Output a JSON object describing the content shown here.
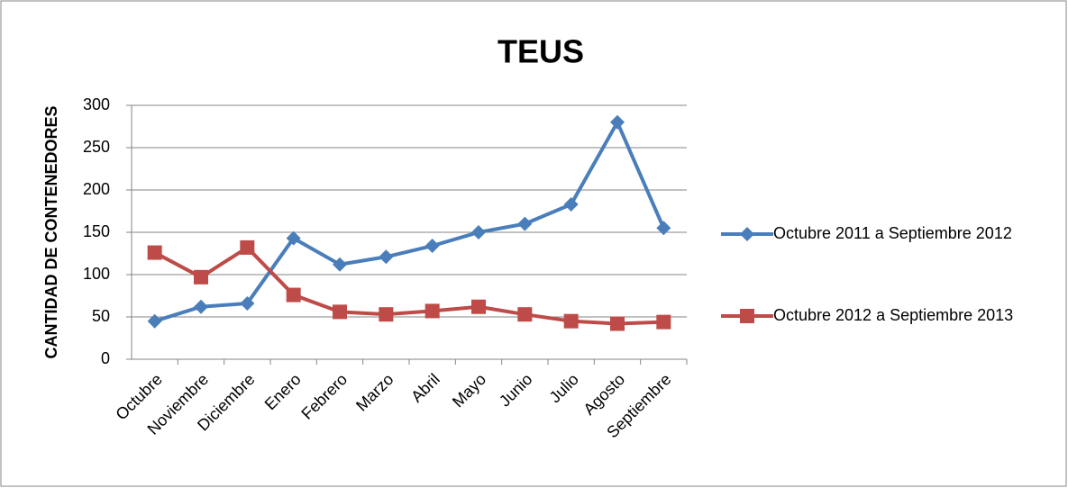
{
  "chart_data": {
    "type": "line",
    "title": "TEUS",
    "y_label": "CANTIDAD DE CONTENEDORES",
    "categories": [
      "Octubre",
      "Noviembre",
      "Diciembre",
      "Enero",
      "Febrero",
      "Marzo",
      "Abril",
      "Mayo",
      "Junio",
      "Julio",
      "Agosto",
      "Septiembre"
    ],
    "series": [
      {
        "name": "Octubre 2011 a Septiembre 2012",
        "color": "#4a7ebb",
        "marker": "diamond",
        "values": [
          45,
          62,
          66,
          143,
          112,
          121,
          134,
          150,
          160,
          183,
          280,
          155
        ]
      },
      {
        "name": "Octubre 2012 a Septiembre 2013",
        "color": "#be4b48",
        "marker": "square",
        "values": [
          126,
          97,
          132,
          76,
          56,
          53,
          57,
          62,
          53,
          45,
          42,
          44
        ]
      }
    ],
    "ylim": [
      0,
      300
    ],
    "yticks": [
      0,
      50,
      100,
      150,
      200,
      250,
      300
    ],
    "grid": true,
    "legend": "right"
  }
}
